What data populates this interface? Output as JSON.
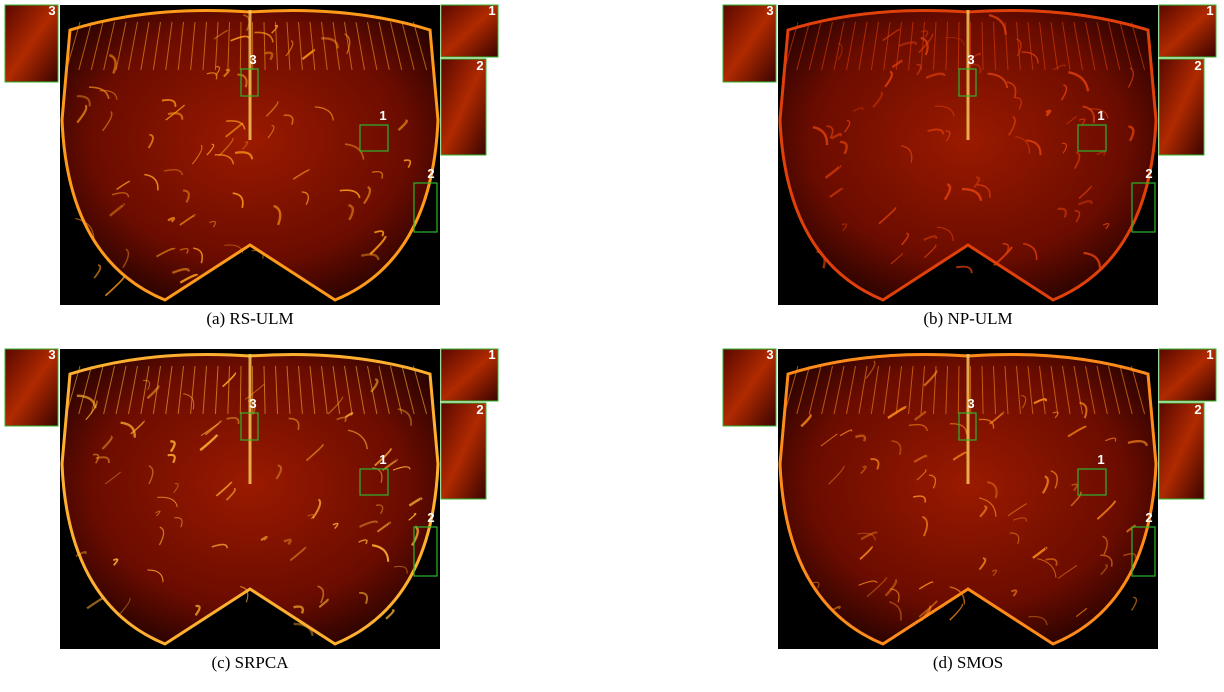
{
  "panels": [
    {
      "caption": "(a) RS-ULM",
      "boxes": [
        "1",
        "2",
        "3"
      ]
    },
    {
      "caption": "(b) NP-ULM",
      "boxes": [
        "1",
        "2",
        "3"
      ]
    },
    {
      "caption": "(c) SRPCA",
      "boxes": [
        "1",
        "2",
        "3"
      ]
    },
    {
      "caption": "(d) SMOS",
      "boxes": [
        "1",
        "2",
        "3"
      ]
    }
  ]
}
